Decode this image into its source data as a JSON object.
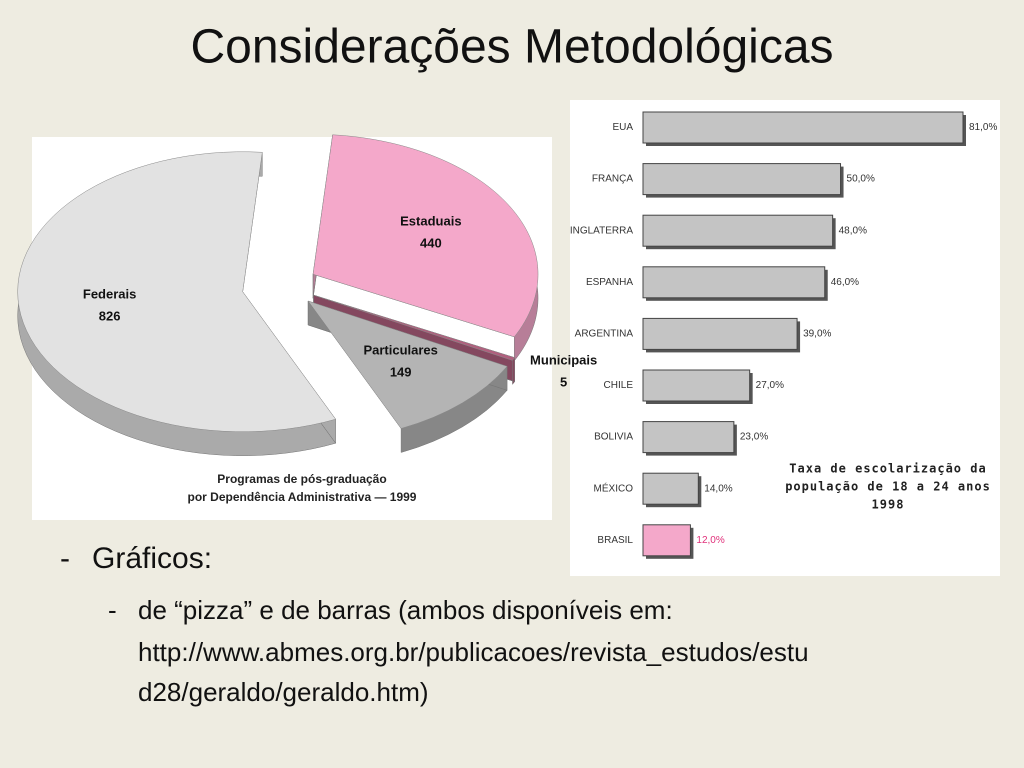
{
  "slide": {
    "title": "Considerações Metodológicas",
    "bullet": "Gráficos:",
    "sub_bullet_lines": [
      "de “pizza” e de barras (ambos disponíveis em:",
      "http://www.abmes.org.br/publicacoes/revista_estudos/estu",
      "d28/geraldo/geraldo.htm)"
    ]
  },
  "chart_data": [
    {
      "type": "pie",
      "title": [
        "Programas de pós-graduação",
        "por Dependência Administrativa — 1999"
      ],
      "categories": [
        "Estaduais",
        "Municipais",
        "Particulares",
        "Federais"
      ],
      "values": [
        440,
        5,
        149,
        826
      ],
      "colors": [
        "#f4a8ca",
        "#b0607e",
        "#b4b4b4",
        "#e2e2e2"
      ]
    },
    {
      "type": "bar",
      "title": [
        "Taxa de escolarização da",
        "população de 18 a 24 anos",
        "1998"
      ],
      "categories": [
        "EUA",
        "FRANÇA",
        "INGLATERRA",
        "ESPANHA",
        "ARGENTINA",
        "CHILE",
        "BOLIVIA",
        "MÉXICO",
        "BRASIL"
      ],
      "values": [
        81,
        50,
        48,
        46,
        39,
        27,
        23,
        14,
        12
      ],
      "value_labels": [
        "81,0%",
        "50,0%",
        "48,0%",
        "46,0%",
        "39,0%",
        "27,0%",
        "23,0%",
        "14,0%",
        "12,0%"
      ],
      "colors": [
        "#c4c4c4",
        "#c4c4c4",
        "#c4c4c4",
        "#c4c4c4",
        "#c4c4c4",
        "#c4c4c4",
        "#c4c4c4",
        "#c4c4c4",
        "#f4a8ca"
      ],
      "label_colors": [
        "#333333",
        "#333333",
        "#333333",
        "#333333",
        "#333333",
        "#333333",
        "#333333",
        "#333333",
        "#e0307a"
      ]
    }
  ]
}
